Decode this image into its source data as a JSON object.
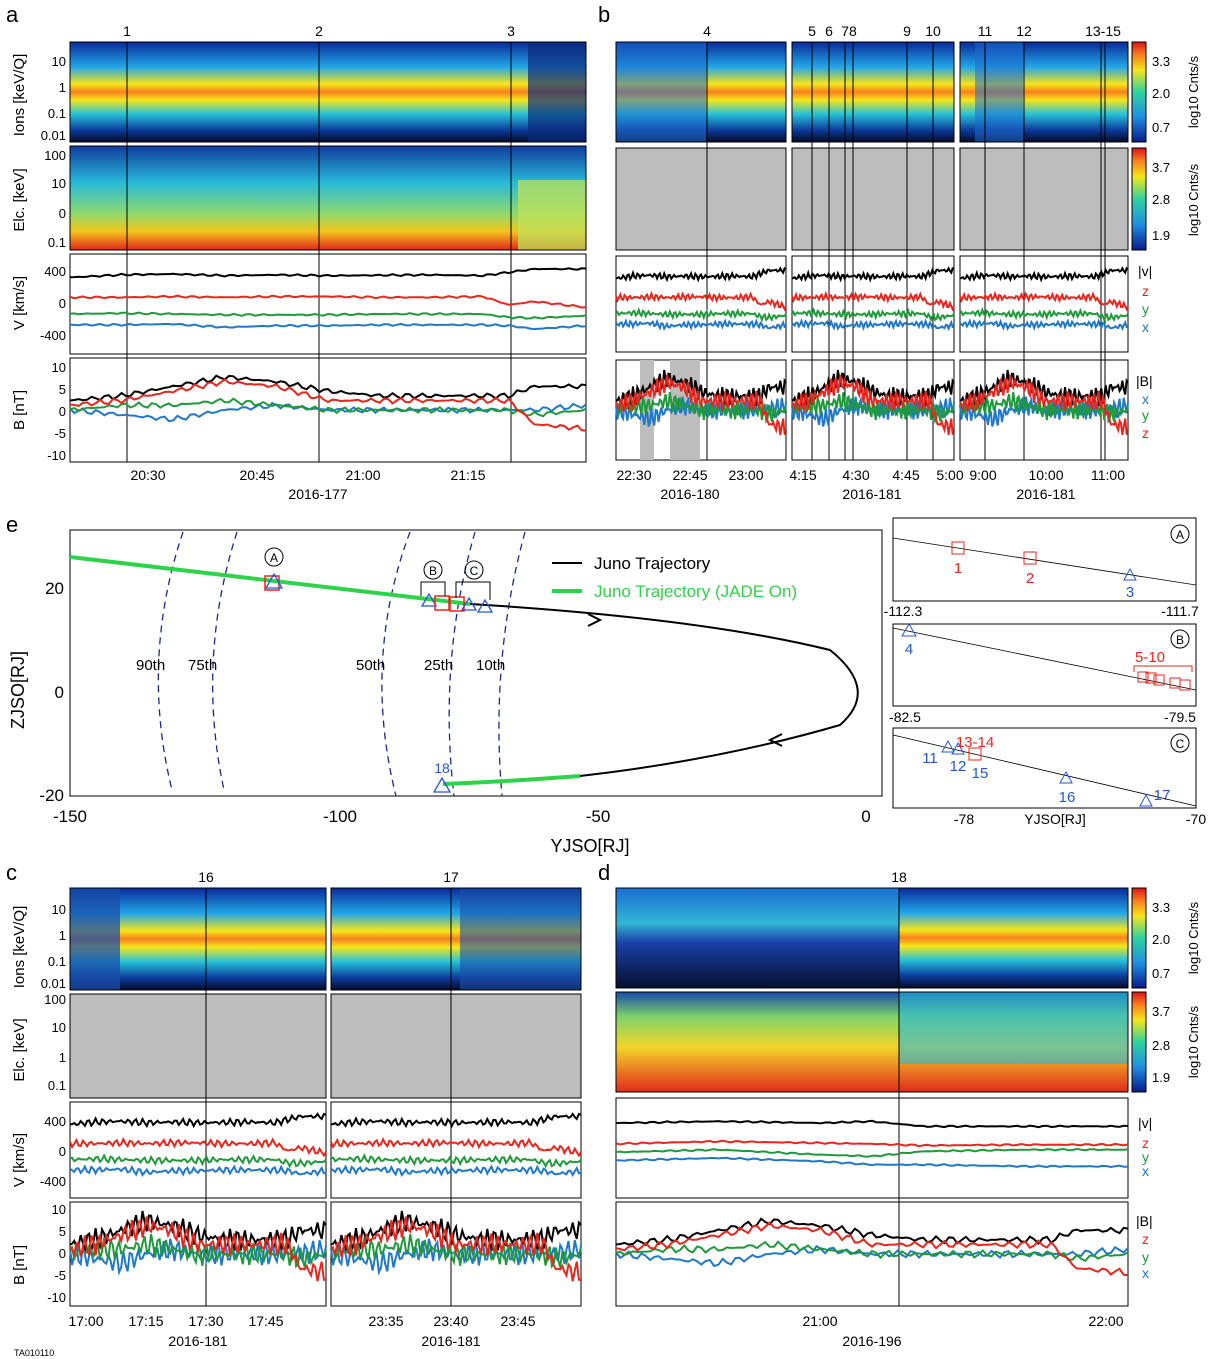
{
  "figure_id": "TA010110",
  "panel_letters": [
    "a",
    "b",
    "c",
    "d",
    "e"
  ],
  "colors": {
    "black": "#000000",
    "red": "#e8261d",
    "green": "#1f9a3a",
    "blue": "#1f78c8",
    "traj_green": "#2fd34a",
    "marker_red": "#e8261d",
    "marker_blue": "#2456d6",
    "dash_blue": "#1a2a8a",
    "gray": "#bdbdbd"
  },
  "axis_labels": {
    "ions": "Ions [keV/Q]",
    "elc": "Elc. [keV]",
    "vel": "V [km/s]",
    "mag": "B [nT]"
  },
  "colorbars": {
    "ions": {
      "ticks": [
        "3.3",
        "2.0",
        "0.7"
      ],
      "label": "log10 Cnts/s"
    },
    "elc": {
      "ticks": [
        "3.7",
        "2.8",
        "1.9"
      ],
      "label": "log10 Cnts/s"
    }
  },
  "ion_ticks_a": [
    "10",
    "1",
    "0.1",
    "0.01"
  ],
  "elc_ticks_a": [
    "100",
    "10",
    "0",
    "0.1"
  ],
  "elc_ticks_c": [
    "100",
    "10",
    "1",
    "0.1"
  ],
  "vel_ticks": [
    "400",
    "0",
    "-400"
  ],
  "mag_ticks": [
    "10",
    "5",
    "0",
    "-5",
    "-10"
  ],
  "vel_legend": [
    "|v|",
    "z",
    "y",
    "x"
  ],
  "mag_legend": [
    "|B|",
    "x",
    "y",
    "z"
  ],
  "mag_legend_d": [
    "|B|",
    "z",
    "y",
    "x"
  ],
  "panel_a": {
    "events": [
      "1",
      "2",
      "3"
    ],
    "time_ticks": [
      "20:30",
      "20:45",
      "21:00",
      "21:15"
    ],
    "date": "2016-177"
  },
  "panel_b": {
    "subpanels": [
      {
        "events": [
          "4"
        ],
        "time_ticks": [
          "22:30",
          "22:45",
          "23:00"
        ],
        "date": "2016-180"
      },
      {
        "events": [
          "5",
          "6",
          "78",
          "9",
          "10"
        ],
        "time_ticks": [
          "4:15",
          "4:30",
          "4:45",
          "5:00"
        ],
        "date": "2016-181"
      },
      {
        "events": [
          "11",
          "12",
          "13-15"
        ],
        "time_ticks": [
          "9:00",
          "10:00",
          "11:00"
        ],
        "date": "2016-181"
      }
    ]
  },
  "panel_c": {
    "subpanels": [
      {
        "events": [
          "16"
        ],
        "time_ticks": [
          "17:00",
          "17:15",
          "17:30",
          "17:45"
        ],
        "date": "2016-181"
      },
      {
        "events": [
          "17"
        ],
        "time_ticks": [
          "23:35",
          "23:40",
          "23:45"
        ],
        "date": "2016-181"
      }
    ]
  },
  "panel_d": {
    "events": [
      "18"
    ],
    "time_ticks": [
      "21:00",
      "22:00"
    ],
    "date": "2016-196"
  },
  "panel_e": {
    "xlabel": "YJSO[RJ]",
    "ylabel": "ZJSO[RJ]",
    "xticks": [
      "-150",
      "-100",
      "-50",
      "0"
    ],
    "yticks": [
      "20",
      "0",
      "-20"
    ],
    "legend": [
      "Juno Trajectory",
      "Juno Trajectory (JADE On)"
    ],
    "percentiles": [
      "90th",
      "75th",
      "50th",
      "25th",
      "10th"
    ],
    "region_labels": [
      "A",
      "B",
      "C"
    ],
    "event_18": "18",
    "inset_a": {
      "xticks": [
        "-112.3",
        "-111.7"
      ],
      "labels": [
        "1",
        "2",
        "3"
      ],
      "region": "A"
    },
    "inset_b": {
      "xticks": [
        "-82.5",
        "-79.5"
      ],
      "labels": [
        "4",
        "5-10"
      ],
      "region": "B"
    },
    "inset_c": {
      "xticks": [
        "-78",
        "-70"
      ],
      "xlabel": "YJSO[RJ]",
      "labels": [
        "11",
        "12",
        "13-14",
        "15",
        "16",
        "17"
      ],
      "region": "C"
    }
  },
  "chart_data": [
    {
      "type": "heatmap",
      "panel": "a-ions",
      "description": "Ion energy spectrogram, 2016-177 20:20-21:25, peak ~1 keV/Q",
      "y_range_keV": [
        0.01,
        40
      ],
      "colorbar": [
        0.7,
        3.3
      ]
    },
    {
      "type": "heatmap",
      "panel": "a-elc",
      "y_range_keV": [
        0.1,
        100
      ],
      "colorbar": [
        1.9,
        3.7
      ]
    },
    {
      "type": "line",
      "panel": "a-vel",
      "x_range": [
        "20:20",
        "21:25"
      ],
      "ylim": [
        -600,
        600
      ],
      "series": [
        {
          "name": "|v|",
          "x": [
            0,
            0.1,
            0.2,
            0.3,
            0.4,
            0.5,
            0.6,
            0.7,
            0.8,
            0.85,
            0.9,
            1.0
          ],
          "values": [
            320,
            350,
            360,
            340,
            350,
            340,
            345,
            350,
            340,
            380,
            420,
            420
          ]
        },
        {
          "name": "z",
          "x": [
            0,
            0.1,
            0.2,
            0.3,
            0.4,
            0.5,
            0.6,
            0.7,
            0.8,
            0.85,
            0.9,
            1.0
          ],
          "values": [
            80,
            80,
            90,
            80,
            90,
            90,
            80,
            80,
            90,
            -10,
            30,
            -40
          ]
        },
        {
          "name": "y",
          "x": [
            0,
            0.1,
            0.2,
            0.3,
            0.4,
            0.5,
            0.6,
            0.7,
            0.8,
            0.85,
            0.9,
            1.0
          ],
          "values": [
            -120,
            -110,
            -120,
            -130,
            -130,
            -130,
            -120,
            -120,
            -120,
            -160,
            -170,
            -140
          ]
        },
        {
          "name": "x",
          "x": [
            0,
            0.1,
            0.2,
            0.3,
            0.4,
            0.5,
            0.6,
            0.7,
            0.8,
            0.85,
            0.9,
            1.0
          ],
          "values": [
            -250,
            -250,
            -240,
            -280,
            -260,
            -260,
            -250,
            -250,
            -250,
            -260,
            -300,
            -260
          ]
        }
      ]
    },
    {
      "type": "line",
      "panel": "a-mag",
      "ylim": [
        -11,
        11
      ],
      "series": [
        {
          "name": "|B|",
          "x": [
            0,
            0.1,
            0.2,
            0.3,
            0.4,
            0.5,
            0.6,
            0.7,
            0.8,
            0.85,
            0.9,
            1.0
          ],
          "values": [
            2,
            3,
            5,
            7,
            6,
            4,
            3,
            3,
            3,
            3,
            5,
            5
          ]
        },
        {
          "name": "x",
          "x": [
            0,
            0.1,
            0.2,
            0.3,
            0.4,
            0.5,
            0.6,
            0.7,
            0.8,
            0.85,
            0.9,
            1.0
          ],
          "values": [
            0,
            -1,
            -2,
            0,
            1,
            0,
            0,
            0,
            0,
            0,
            0,
            1
          ]
        },
        {
          "name": "y",
          "x": [
            0,
            0.1,
            0.2,
            0.3,
            0.4,
            0.5,
            0.6,
            0.7,
            0.8,
            0.85,
            0.9,
            1.0
          ],
          "values": [
            0,
            1,
            1,
            2,
            1,
            0,
            0,
            0,
            0,
            0,
            -1,
            0
          ]
        },
        {
          "name": "z",
          "x": [
            0,
            0.1,
            0.2,
            0.3,
            0.4,
            0.5,
            0.6,
            0.7,
            0.8,
            0.85,
            0.9,
            1.0
          ],
          "values": [
            1,
            2,
            4,
            6,
            5,
            2,
            2,
            2,
            2,
            2,
            -3,
            -4
          ]
        }
      ]
    },
    {
      "type": "line",
      "panel": "d-vel",
      "series": [
        {
          "name": "|v|",
          "x": [
            0,
            0.2,
            0.4,
            0.5,
            0.6,
            0.8,
            1.0
          ],
          "values": [
            300,
            320,
            300,
            320,
            260,
            260,
            260
          ]
        },
        {
          "name": "z",
          "x": [
            0,
            0.2,
            0.4,
            0.5,
            0.6,
            0.8,
            1.0
          ],
          "values": [
            50,
            80,
            60,
            50,
            30,
            40,
            40
          ]
        },
        {
          "name": "y",
          "x": [
            0,
            0.2,
            0.4,
            0.5,
            0.6,
            0.8,
            1.0
          ],
          "values": [
            -50,
            -20,
            -80,
            -100,
            -40,
            -20,
            -20
          ]
        },
        {
          "name": "x",
          "x": [
            0,
            0.2,
            0.4,
            0.5,
            0.6,
            0.8,
            1.0
          ],
          "values": [
            -150,
            -120,
            -160,
            -200,
            -200,
            -220,
            -220
          ]
        }
      ]
    },
    {
      "type": "line",
      "panel": "e-trajectory",
      "xlim": [
        -150,
        0
      ],
      "ylim": [
        -20,
        30
      ],
      "series": [
        {
          "name": "Juno Trajectory (JADE On)",
          "x": [
            -150,
            -100,
            -80,
            -60
          ],
          "values": [
            26,
            21,
            17,
            13
          ]
        },
        {
          "name": "Juno Trajectory",
          "x": [
            -60,
            -20,
            0,
            -20,
            -50,
            -80
          ],
          "values": [
            13,
            10,
            0,
            -12,
            -15,
            -17
          ]
        }
      ]
    }
  ]
}
